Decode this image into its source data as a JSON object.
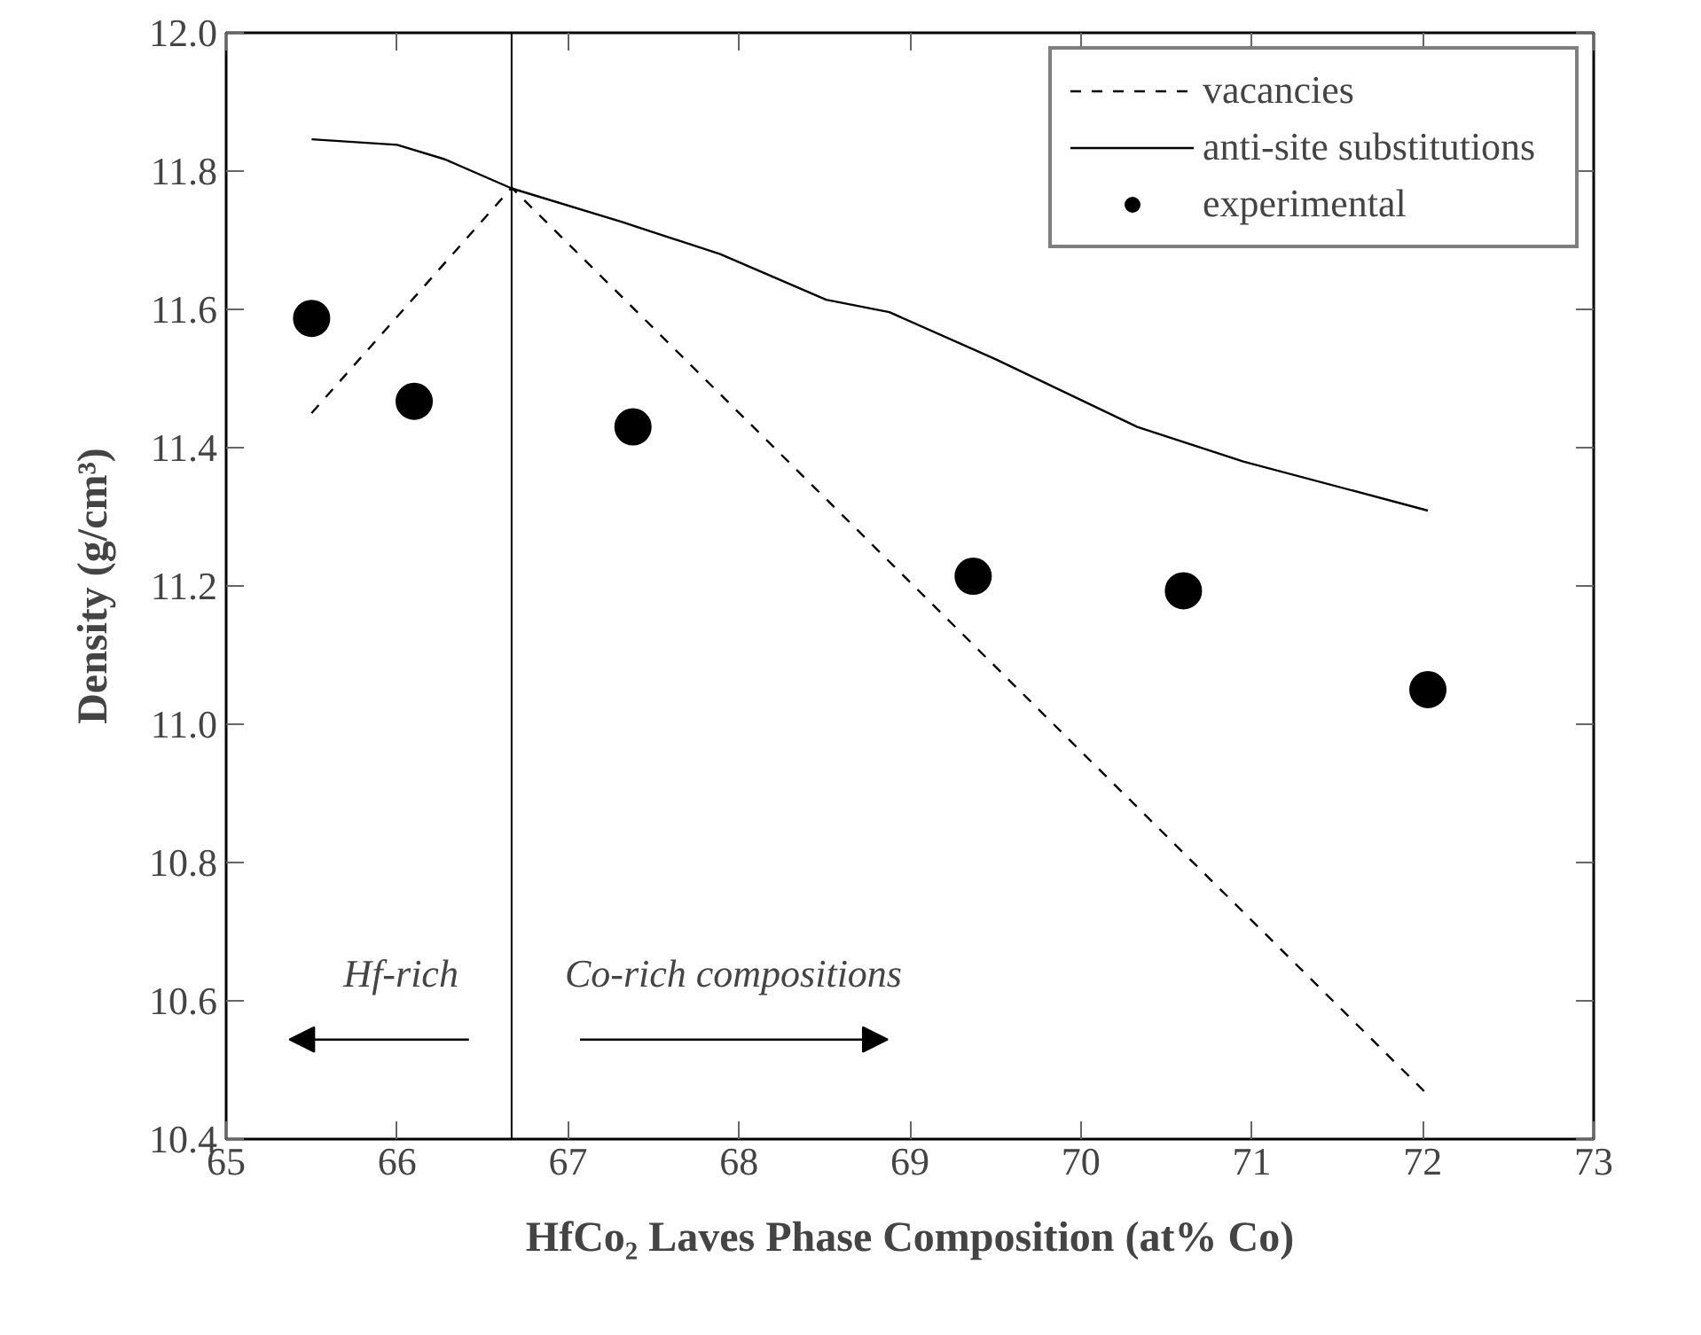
{
  "chart_data": {
    "type": "line",
    "xlabel": "HfCo₂ Laves Phase Composition (at% Co)",
    "ylabel": "Density (g/cm³)",
    "xlim": [
      65,
      73
    ],
    "xticks": [
      65,
      66,
      67,
      68,
      69,
      70,
      71,
      72,
      73
    ],
    "ylim": [
      10.4,
      12.0
    ],
    "yticks": [
      {
        "value": 10.4,
        "label": "10.4"
      },
      {
        "value": 10.6,
        "label": "10.6"
      },
      {
        "value": 10.8,
        "label": "10.8"
      },
      {
        "value": 11.0,
        "label": "11.0"
      },
      {
        "value": 11.2,
        "label": "11.2"
      },
      {
        "value": 11.4,
        "label": "11.4"
      },
      {
        "value": 11.6,
        "label": "11.6"
      },
      {
        "value": 11.8,
        "label": "11.8"
      },
      {
        "value": 12.0,
        "label": "12.0"
      }
    ],
    "grid": false,
    "legend": "top right",
    "series": [
      {
        "name": "vacancies",
        "line_style": "dashed",
        "color": "#000000",
        "x": [
          65.5,
          66.67,
          72.03
        ],
        "values": [
          11.45,
          11.776,
          10.464
        ]
      },
      {
        "name": "anti-site substitutions",
        "line_style": "solid",
        "color": "#000000",
        "x": [
          65.5,
          66.0,
          66.28,
          66.67,
          67.32,
          67.89,
          68.51,
          68.88,
          69.5,
          70.33,
          70.95,
          72.03
        ],
        "values": [
          11.846,
          11.838,
          11.817,
          11.775,
          11.726,
          11.68,
          11.614,
          11.596,
          11.528,
          11.43,
          11.38,
          11.309
        ]
      },
      {
        "name": "experimental",
        "type": "scatter",
        "marker": "circle",
        "color": "#000000",
        "x": [
          65.5,
          66.1,
          67.38,
          69.37,
          70.6,
          72.03
        ],
        "values": [
          11.587,
          11.467,
          11.43,
          11.214,
          11.193,
          11.05
        ]
      }
    ],
    "ref_lines": [
      {
        "axis": "x",
        "value": 66.67,
        "label": null,
        "color": "#000000"
      }
    ],
    "annotations": [
      "Hf-rich",
      "Co-rich compositions"
    ]
  }
}
